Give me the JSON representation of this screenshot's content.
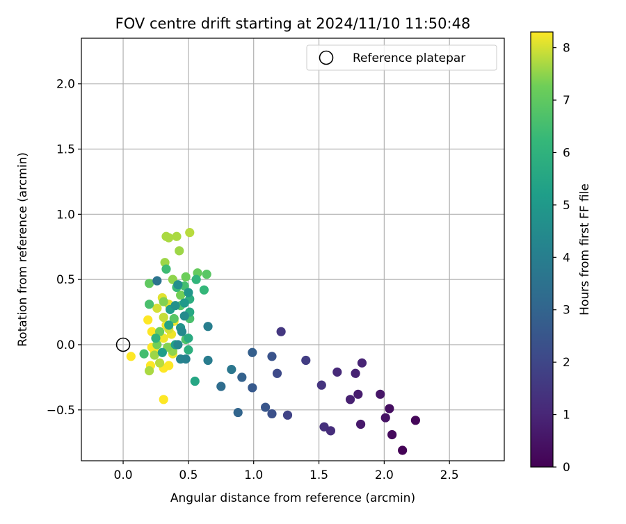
{
  "chart_data": {
    "type": "scatter",
    "title": "FOV centre drift starting at 2024/11/10 11:50:48",
    "xlabel": "Angular distance from reference (arcmin)",
    "ylabel": "Rotation from reference (arcmin)",
    "xlim": [
      -0.32,
      2.92
    ],
    "ylim": [
      -0.89,
      2.35
    ],
    "xticks": [
      0.0,
      0.5,
      1.0,
      1.5,
      2.0,
      2.5
    ],
    "xtick_labels": [
      "0.0",
      "0.5",
      "1.0",
      "1.5",
      "2.0",
      "2.5"
    ],
    "yticks": [
      -0.5,
      0.0,
      0.5,
      1.0,
      1.5,
      2.0
    ],
    "ytick_labels": [
      "−0.5",
      "0.0",
      "0.5",
      "1.0",
      "1.5",
      "2.0"
    ],
    "grid": true,
    "legend": {
      "placement": "top-right",
      "entries": [
        "Reference platepar"
      ]
    },
    "reference_point": {
      "x": 0.0,
      "y": 0.0
    },
    "colorbar": {
      "label": "Hours from first FF file",
      "colormap": "viridis",
      "range": [
        0,
        8.3
      ],
      "ticks": [
        0,
        1,
        2,
        3,
        4,
        5,
        6,
        7,
        8
      ],
      "tick_labels": [
        "0",
        "1",
        "2",
        "3",
        "4",
        "5",
        "6",
        "7",
        "8"
      ]
    },
    "points": [
      {
        "x": 2.14,
        "y": -0.81,
        "c": 0.05
      },
      {
        "x": 2.24,
        "y": -0.58,
        "c": 0.15
      },
      {
        "x": 2.06,
        "y": -0.69,
        "c": 0.25
      },
      {
        "x": 2.04,
        "y": -0.49,
        "c": 0.35
      },
      {
        "x": 2.01,
        "y": -0.56,
        "c": 0.45
      },
      {
        "x": 1.97,
        "y": -0.38,
        "c": 0.55
      },
      {
        "x": 1.82,
        "y": -0.61,
        "c": 0.65
      },
      {
        "x": 1.8,
        "y": -0.38,
        "c": 0.75
      },
      {
        "x": 1.74,
        "y": -0.42,
        "c": 0.85
      },
      {
        "x": 1.78,
        "y": -0.22,
        "c": 0.9
      },
      {
        "x": 1.83,
        "y": -0.14,
        "c": 0.95
      },
      {
        "x": 1.64,
        "y": -0.21,
        "c": 1.1
      },
      {
        "x": 1.59,
        "y": -0.66,
        "c": 1.2
      },
      {
        "x": 1.54,
        "y": -0.63,
        "c": 1.3
      },
      {
        "x": 1.52,
        "y": -0.31,
        "c": 1.4
      },
      {
        "x": 1.21,
        "y": 0.1,
        "c": 1.5
      },
      {
        "x": 1.4,
        "y": -0.12,
        "c": 1.7
      },
      {
        "x": 1.26,
        "y": -0.54,
        "c": 1.9
      },
      {
        "x": 1.18,
        "y": -0.22,
        "c": 2.1
      },
      {
        "x": 1.14,
        "y": -0.53,
        "c": 2.3
      },
      {
        "x": 1.14,
        "y": -0.09,
        "c": 2.4
      },
      {
        "x": 1.09,
        "y": -0.48,
        "c": 2.5
      },
      {
        "x": 0.99,
        "y": -0.33,
        "c": 2.6
      },
      {
        "x": 0.99,
        "y": -0.06,
        "c": 2.8
      },
      {
        "x": 0.91,
        "y": -0.25,
        "c": 2.9
      },
      {
        "x": 0.88,
        "y": -0.52,
        "c": 3.0
      },
      {
        "x": 0.75,
        "y": -0.32,
        "c": 3.3
      },
      {
        "x": 0.83,
        "y": -0.19,
        "c": 3.7
      },
      {
        "x": 0.65,
        "y": -0.12,
        "c": 3.9
      },
      {
        "x": 0.65,
        "y": 0.14,
        "c": 4.0
      },
      {
        "x": 0.48,
        "y": -0.11,
        "c": 4.1
      },
      {
        "x": 0.44,
        "y": -0.11,
        "c": 4.2
      },
      {
        "x": 0.42,
        "y": 0.0,
        "c": 4.3
      },
      {
        "x": 0.45,
        "y": 0.1,
        "c": 4.4
      },
      {
        "x": 0.47,
        "y": 0.22,
        "c": 4.5
      },
      {
        "x": 0.42,
        "y": 0.46,
        "c": 4.6
      },
      {
        "x": 0.26,
        "y": 0.49,
        "c": 3.6
      },
      {
        "x": 0.4,
        "y": 0.3,
        "c": 4.7
      },
      {
        "x": 0.44,
        "y": 0.13,
        "c": 4.8
      },
      {
        "x": 0.5,
        "y": 0.4,
        "c": 4.9
      },
      {
        "x": 0.47,
        "y": 0.32,
        "c": 5.0
      },
      {
        "x": 0.36,
        "y": 0.27,
        "c": 5.1
      },
      {
        "x": 0.3,
        "y": -0.06,
        "c": 5.2
      },
      {
        "x": 0.4,
        "y": 0.0,
        "c": 5.3
      },
      {
        "x": 0.35,
        "y": 0.15,
        "c": 5.4
      },
      {
        "x": 0.55,
        "y": -0.28,
        "c": 5.5
      },
      {
        "x": 0.51,
        "y": 0.25,
        "c": 5.6
      },
      {
        "x": 0.5,
        "y": 0.05,
        "c": 5.7
      },
      {
        "x": 0.51,
        "y": 0.35,
        "c": 5.8
      },
      {
        "x": 0.5,
        "y": -0.04,
        "c": 5.9
      },
      {
        "x": 0.25,
        "y": 0.05,
        "c": 6.0
      },
      {
        "x": 0.56,
        "y": 0.5,
        "c": 6.1
      },
      {
        "x": 0.62,
        "y": 0.42,
        "c": 6.2
      },
      {
        "x": 0.41,
        "y": 0.44,
        "c": 6.3
      },
      {
        "x": 0.33,
        "y": 0.58,
        "c": 6.4
      },
      {
        "x": 0.47,
        "y": 0.45,
        "c": 6.5
      },
      {
        "x": 0.51,
        "y": 0.2,
        "c": 6.6
      },
      {
        "x": 0.48,
        "y": 0.04,
        "c": 6.7
      },
      {
        "x": 0.44,
        "y": 0.3,
        "c": 6.8
      },
      {
        "x": 0.39,
        "y": 0.2,
        "c": 6.9
      },
      {
        "x": 0.16,
        "y": -0.07,
        "c": 6.5
      },
      {
        "x": 0.2,
        "y": 0.31,
        "c": 6.6
      },
      {
        "x": 0.64,
        "y": 0.54,
        "c": 6.9
      },
      {
        "x": 0.2,
        "y": 0.47,
        "c": 7.0
      },
      {
        "x": 0.57,
        "y": 0.55,
        "c": 7.1
      },
      {
        "x": 0.48,
        "y": 0.52,
        "c": 7.2
      },
      {
        "x": 0.44,
        "y": 0.38,
        "c": 7.3
      },
      {
        "x": 0.31,
        "y": 0.33,
        "c": 7.4
      },
      {
        "x": 0.38,
        "y": 0.5,
        "c": 7.5
      },
      {
        "x": 0.32,
        "y": 0.63,
        "c": 7.6
      },
      {
        "x": 0.43,
        "y": 0.72,
        "c": 7.6
      },
      {
        "x": 0.33,
        "y": 0.83,
        "c": 7.7
      },
      {
        "x": 0.35,
        "y": 0.82,
        "c": 7.7
      },
      {
        "x": 0.41,
        "y": 0.83,
        "c": 7.7
      },
      {
        "x": 0.51,
        "y": 0.86,
        "c": 7.8
      },
      {
        "x": 0.28,
        "y": 0.1,
        "c": 7.2
      },
      {
        "x": 0.26,
        "y": 0.0,
        "c": 7.3
      },
      {
        "x": 0.34,
        "y": -0.02,
        "c": 7.4
      },
      {
        "x": 0.38,
        "y": -0.05,
        "c": 7.5
      },
      {
        "x": 0.24,
        "y": -0.08,
        "c": 7.6
      },
      {
        "x": 0.2,
        "y": -0.2,
        "c": 7.7
      },
      {
        "x": 0.28,
        "y": -0.14,
        "c": 7.8
      },
      {
        "x": 0.31,
        "y": 0.21,
        "c": 7.9
      },
      {
        "x": 0.35,
        "y": 0.12,
        "c": 8.0
      },
      {
        "x": 0.26,
        "y": 0.28,
        "c": 8.0
      },
      {
        "x": 0.3,
        "y": 0.36,
        "c": 8.1
      },
      {
        "x": 0.35,
        "y": 0.31,
        "c": 8.1
      },
      {
        "x": 0.39,
        "y": 0.18,
        "c": 8.2
      },
      {
        "x": 0.37,
        "y": 0.08,
        "c": 8.2
      },
      {
        "x": 0.31,
        "y": 0.05,
        "c": 8.2
      },
      {
        "x": 0.22,
        "y": 0.1,
        "c": 8.3
      },
      {
        "x": 0.22,
        "y": -0.02,
        "c": 8.3
      },
      {
        "x": 0.24,
        "y": -0.05,
        "c": 8.3
      },
      {
        "x": 0.19,
        "y": 0.19,
        "c": 8.3
      },
      {
        "x": 0.06,
        "y": -0.09,
        "c": 8.3
      },
      {
        "x": 0.21,
        "y": -0.16,
        "c": 8.3
      },
      {
        "x": 0.31,
        "y": -0.18,
        "c": 8.3
      },
      {
        "x": 0.35,
        "y": -0.16,
        "c": 8.3
      },
      {
        "x": 0.31,
        "y": -0.42,
        "c": 8.3
      },
      {
        "x": 0.36,
        "y": -0.02,
        "c": 8.3
      },
      {
        "x": 0.33,
        "y": 0.15,
        "c": 8.2
      },
      {
        "x": 0.38,
        "y": -0.07,
        "c": 8.2
      }
    ]
  }
}
